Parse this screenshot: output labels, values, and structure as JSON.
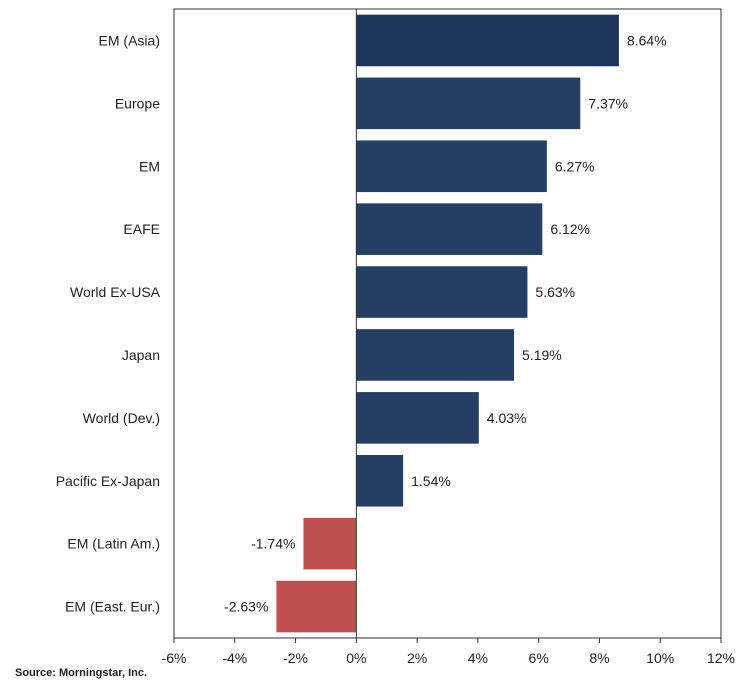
{
  "chart_data": {
    "type": "bar",
    "orientation": "horizontal",
    "categories": [
      "EM (Asia)",
      "Europe",
      "EM",
      "EAFE",
      "World Ex-USA",
      "Japan",
      "World (Dev.)",
      "Pacific Ex-Japan",
      "EM (Latin Am.)",
      "EM (East. Eur.)"
    ],
    "values": [
      8.64,
      7.37,
      6.27,
      6.12,
      5.63,
      5.19,
      4.03,
      1.54,
      -1.74,
      -2.63
    ],
    "value_labels": [
      "8.64%",
      "7.37%",
      "6.27%",
      "6.12%",
      "5.63%",
      "5.19%",
      "4.03%",
      "1.54%",
      "-1.74%",
      "-2.63%"
    ],
    "xlim": [
      -6,
      12
    ],
    "xticks": [
      -6,
      -4,
      -2,
      0,
      2,
      4,
      6,
      8,
      10,
      12
    ],
    "xtick_labels": [
      "-6%",
      "-4%",
      "-2%",
      "0%",
      "2%",
      "4%",
      "6%",
      "8%",
      "10%",
      "12%"
    ],
    "grid": false,
    "colors": {
      "positive": "#243f63",
      "positive_top": "#1b355c",
      "negative": "#c0504d"
    }
  },
  "source": "Source: Morningstar, Inc."
}
